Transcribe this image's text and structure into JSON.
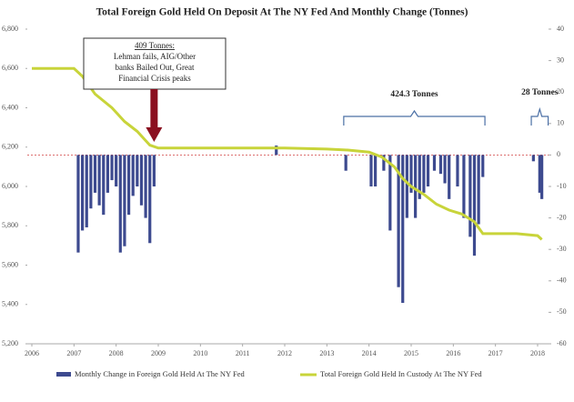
{
  "chart_data": {
    "type": "bar+line",
    "title": "Total Foreign Gold Held On Deposit At The NY Fed And Monthly Change (Tonnes)",
    "xlim": [
      2006,
      2018.3
    ],
    "xticks": [
      2006,
      2007,
      2008,
      2009,
      2010,
      2011,
      2012,
      2013,
      2014,
      2015,
      2016,
      2017,
      2018
    ],
    "ylim": [
      5200,
      6800
    ],
    "yticks": [
      {
        "value": 5200,
        "label": "5,200"
      },
      {
        "value": 5400,
        "label": "5,400"
      },
      {
        "value": 5600,
        "label": "5,600"
      },
      {
        "value": 5800,
        "label": "5,800"
      },
      {
        "value": 6000,
        "label": "6,000"
      },
      {
        "value": 6200,
        "label": "6,200"
      },
      {
        "value": 6400,
        "label": "6,400"
      },
      {
        "value": 6600,
        "label": "6,600"
      },
      {
        "value": 6800,
        "label": "6,800"
      }
    ],
    "y2lim": [
      -60,
      40
    ],
    "y2ticks": [
      -60,
      -50,
      -40,
      -30,
      -20,
      -10,
      0,
      10,
      20,
      30,
      40
    ],
    "series": [
      {
        "name": "Monthly Change in Foreign Gold Held At The NY Fed",
        "type": "bar",
        "axis": "y2",
        "color": "#3d4a8f",
        "x": [
          2007.1,
          2007.2,
          2007.3,
          2007.4,
          2007.5,
          2007.6,
          2007.7,
          2007.8,
          2007.9,
          2008.0,
          2008.1,
          2008.2,
          2008.3,
          2008.4,
          2008.5,
          2008.6,
          2008.7,
          2008.8,
          2008.9,
          2011.8,
          2013.45,
          2014.05,
          2014.15,
          2014.35,
          2014.5,
          2014.7,
          2014.8,
          2014.9,
          2015.0,
          2015.1,
          2015.2,
          2015.3,
          2015.4,
          2015.55,
          2015.7,
          2015.8,
          2015.9,
          2016.1,
          2016.25,
          2016.4,
          2016.5,
          2016.6,
          2016.7,
          2017.9,
          2018.05,
          2018.1
        ],
        "values": [
          -31,
          -24,
          -23,
          -17,
          -12,
          -16,
          -19,
          -12,
          -8,
          -10,
          -31,
          -29,
          -19,
          -13,
          -10,
          -16,
          -20,
          -28,
          -10,
          3,
          -5,
          -10,
          -10,
          -5,
          -24,
          -42,
          -47,
          -20,
          -12,
          -20,
          -14,
          -12,
          -10,
          -5,
          -6,
          -9,
          -14,
          -10,
          -20,
          -26,
          -32,
          -22,
          -7,
          -2,
          -12,
          -14
        ]
      },
      {
        "name": "Total Foreign Gold Held In Custody At The NY Fed",
        "type": "line",
        "axis": "y",
        "color": "#c8d43a",
        "x": [
          2006.0,
          2007.0,
          2007.2,
          2007.5,
          2007.9,
          2008.2,
          2008.5,
          2008.8,
          2009.0,
          2010.0,
          2012.0,
          2013.0,
          2013.5,
          2014.0,
          2014.3,
          2014.6,
          2014.8,
          2015.0,
          2015.3,
          2015.6,
          2015.9,
          2016.2,
          2016.5,
          2016.7,
          2017.0,
          2017.5,
          2018.0,
          2018.1
        ],
        "values": [
          6600,
          6600,
          6560,
          6470,
          6400,
          6330,
          6280,
          6210,
          6195,
          6195,
          6195,
          6190,
          6185,
          6175,
          6150,
          6100,
          6040,
          6000,
          5960,
          5910,
          5880,
          5860,
          5820,
          5760,
          5760,
          5760,
          5750,
          5730
        ]
      }
    ],
    "annotations": {
      "crisis": {
        "lines": [
          "409 Tonnes:",
          "Lehman fails, AIG/Other",
          "banks Bailed Out, Great",
          "Financial Crisis peaks"
        ]
      },
      "mid": "424.3 Tonnes",
      "recent": "28 Tonnes"
    }
  }
}
